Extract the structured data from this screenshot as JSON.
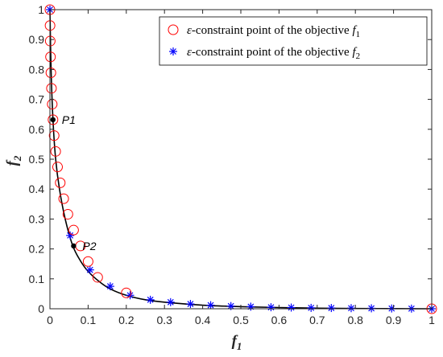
{
  "chart_data": {
    "type": "scatter",
    "xlabel": "f",
    "xlabel_sub": "1",
    "ylabel": "f",
    "ylabel_sub": "2",
    "xlim": [
      0,
      1
    ],
    "ylim": [
      0,
      1
    ],
    "xticks": [
      "0",
      "0.1",
      "0.2",
      "0.3",
      "0.4",
      "0.5",
      "0.6",
      "0.7",
      "0.8",
      "0.9",
      "1"
    ],
    "yticks": [
      "0",
      "0.1",
      "0.2",
      "0.3",
      "0.4",
      "0.5",
      "0.6",
      "0.7",
      "0.8",
      "0.9",
      "1"
    ],
    "grid": false,
    "legend_position": "top-right",
    "frontier": {
      "x": [
        0,
        0.003,
        0.008,
        0.015,
        0.025,
        0.04,
        0.06,
        0.08,
        0.1,
        0.13,
        0.16,
        0.2,
        0.25,
        0.3,
        0.4,
        0.5,
        0.6,
        0.7,
        0.8,
        0.9,
        1.0
      ],
      "y": [
        1.0,
        0.8,
        0.63,
        0.5,
        0.4,
        0.3,
        0.21,
        0.16,
        0.125,
        0.09,
        0.065,
        0.045,
        0.03,
        0.022,
        0.012,
        0.007,
        0.004,
        0.002,
        0.001,
        0.0005,
        0
      ]
    },
    "series": [
      {
        "name_prefix": "ε",
        "name": "-constraint point of the objective ",
        "name_var": "f",
        "name_sub": "1",
        "marker": "circle",
        "color": "#ff0000",
        "x": [
          0,
          0.0003,
          0.0008,
          0.0015,
          0.0025,
          0.004,
          0.006,
          0.008,
          0.011,
          0.015,
          0.02,
          0.027,
          0.036,
          0.047,
          0.062,
          0.08,
          0.1,
          0.125,
          0.2,
          1.0
        ],
        "y": [
          1.0,
          0.947,
          0.895,
          0.842,
          0.789,
          0.737,
          0.684,
          0.632,
          0.579,
          0.526,
          0.474,
          0.421,
          0.368,
          0.316,
          0.263,
          0.21,
          0.158,
          0.105,
          0.053,
          0
        ]
      },
      {
        "name_prefix": "ε",
        "name": "-constraint point of the objective ",
        "name_var": "f",
        "name_sub": "2",
        "marker": "asterisk",
        "color": "#0000ff",
        "x": [
          0,
          0.053,
          0.105,
          0.158,
          0.21,
          0.263,
          0.316,
          0.368,
          0.421,
          0.474,
          0.526,
          0.579,
          0.632,
          0.684,
          0.737,
          0.789,
          0.842,
          0.895,
          0.947,
          1.0
        ],
        "y": [
          1.0,
          0.245,
          0.13,
          0.075,
          0.045,
          0.03,
          0.022,
          0.016,
          0.012,
          0.009,
          0.007,
          0.005,
          0.004,
          0.003,
          0.0025,
          0.002,
          0.0015,
          0.001,
          0.0005,
          0
        ]
      }
    ],
    "annotations": [
      {
        "label": "P1",
        "x": 0.008,
        "y": 0.632
      },
      {
        "label": "P2",
        "x": 0.062,
        "y": 0.21
      }
    ]
  }
}
